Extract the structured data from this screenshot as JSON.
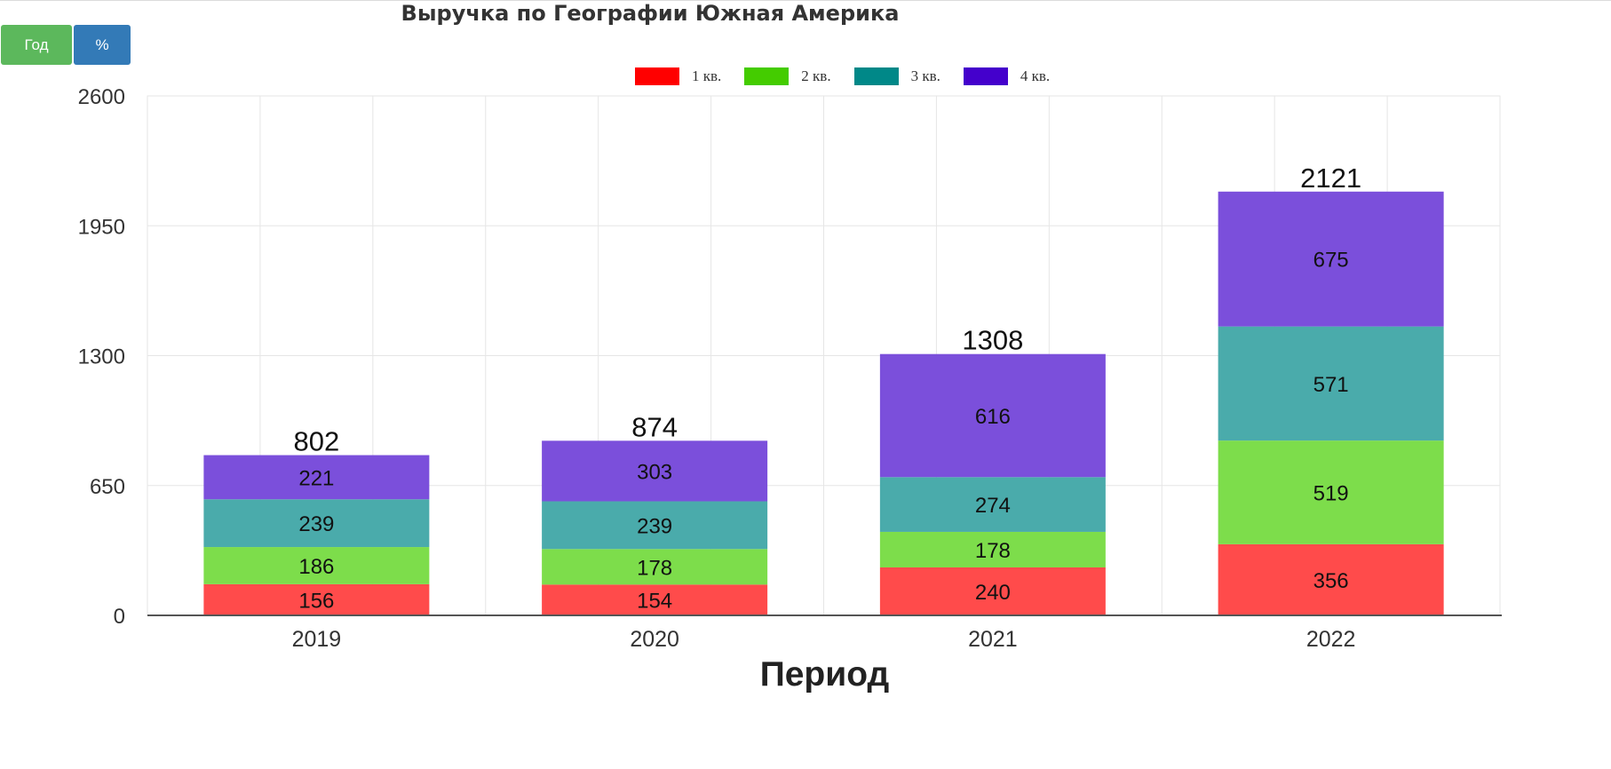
{
  "title": "Выручка по Географии Южная Америка",
  "buttons": {
    "year_label": "Год",
    "percent_label": "%"
  },
  "colors": {
    "q1": "#ff4b4b",
    "q2": "#7ddd4b",
    "q3": "#4aabab",
    "q4": "#7b4fdb",
    "legend_q1": "#ff0000",
    "legend_q2": "#44cc00",
    "legend_q3": "#008888",
    "legend_q4": "#4400cc",
    "grid": "#e6e6e6",
    "axis": "#555555",
    "text": "#333333"
  },
  "legend": [
    "1 кв.",
    "2 кв.",
    "3 кв.",
    "4 кв."
  ],
  "chart_data": {
    "type": "bar",
    "stacked": true,
    "categories": [
      "2019",
      "2020",
      "2021",
      "2022"
    ],
    "series": [
      {
        "name": "1 кв.",
        "values": [
          156,
          154,
          240,
          356
        ]
      },
      {
        "name": "2 кв.",
        "values": [
          186,
          178,
          178,
          519
        ]
      },
      {
        "name": "3 кв.",
        "values": [
          239,
          239,
          274,
          571
        ]
      },
      {
        "name": "4 кв.",
        "values": [
          221,
          303,
          616,
          675
        ]
      }
    ],
    "totals": [
      802,
      874,
      1308,
      2121
    ],
    "title": "Выручка по Географии Южная Америка",
    "xlabel": "Период",
    "ylabel": "",
    "ylim": [
      0,
      2600
    ],
    "yticks": [
      "0",
      "650",
      "1300",
      "1950",
      "2600"
    ],
    "grid": true,
    "legend_position": "top-center"
  }
}
